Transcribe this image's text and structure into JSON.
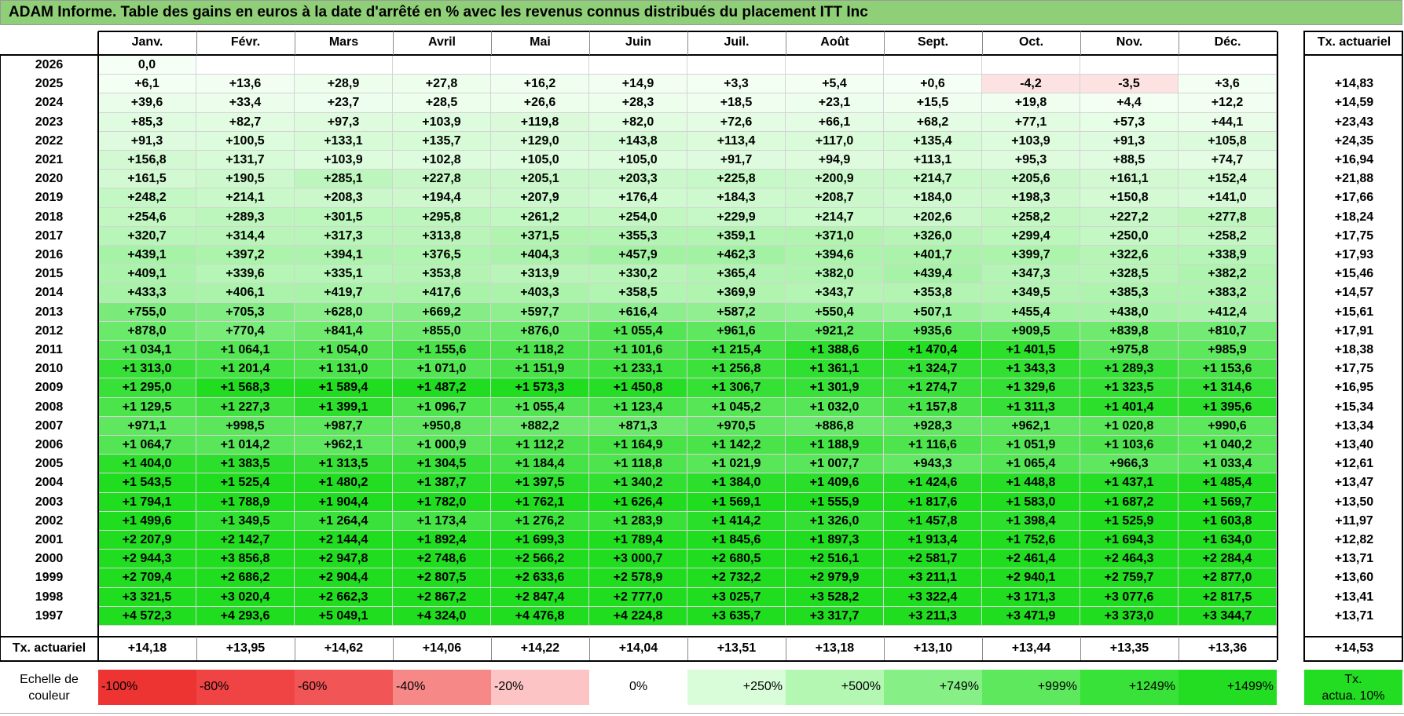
{
  "title": "ADAM Informe. Table des gains en euros à la date d'arrêté en % avec les revenus connus distribués du placement ITT Inc",
  "months": [
    "Janv.",
    "Févr.",
    "Mars",
    "Avril",
    "Mai",
    "Juin",
    "Juil.",
    "Août",
    "Sept.",
    "Oct.",
    "Nov.",
    "Déc."
  ],
  "rate_header": "Tx. actuariel",
  "rows": [
    {
      "year": "2026",
      "values": [
        "0,0",
        "",
        "",
        "",
        "",
        "",
        "",
        "",
        "",
        "",
        "",
        ""
      ],
      "rate": ""
    },
    {
      "year": "2025",
      "values": [
        "+6,1",
        "+13,6",
        "+28,9",
        "+27,8",
        "+16,2",
        "+14,9",
        "+3,3",
        "+5,4",
        "+0,6",
        "-4,2",
        "-3,5",
        "+3,6"
      ],
      "rate": "+14,83"
    },
    {
      "year": "2024",
      "values": [
        "+39,6",
        "+33,4",
        "+23,7",
        "+28,5",
        "+26,6",
        "+28,3",
        "+18,5",
        "+23,1",
        "+15,5",
        "+19,8",
        "+4,4",
        "+12,2"
      ],
      "rate": "+14,59"
    },
    {
      "year": "2023",
      "values": [
        "+85,3",
        "+82,7",
        "+97,3",
        "+103,9",
        "+119,8",
        "+82,0",
        "+72,6",
        "+66,1",
        "+68,2",
        "+77,1",
        "+57,3",
        "+44,1"
      ],
      "rate": "+23,43"
    },
    {
      "year": "2022",
      "values": [
        "+91,3",
        "+100,5",
        "+133,1",
        "+135,7",
        "+129,0",
        "+143,8",
        "+113,4",
        "+117,0",
        "+135,4",
        "+103,9",
        "+91,3",
        "+105,8"
      ],
      "rate": "+24,35"
    },
    {
      "year": "2021",
      "values": [
        "+156,8",
        "+131,7",
        "+103,9",
        "+102,8",
        "+105,0",
        "+105,0",
        "+91,7",
        "+94,9",
        "+113,1",
        "+95,3",
        "+88,5",
        "+74,7"
      ],
      "rate": "+16,94"
    },
    {
      "year": "2020",
      "values": [
        "+161,5",
        "+190,5",
        "+285,1",
        "+227,8",
        "+205,1",
        "+203,3",
        "+225,8",
        "+200,9",
        "+214,7",
        "+205,6",
        "+161,1",
        "+152,4"
      ],
      "rate": "+21,88"
    },
    {
      "year": "2019",
      "values": [
        "+248,2",
        "+214,1",
        "+208,3",
        "+194,4",
        "+207,9",
        "+176,4",
        "+184,3",
        "+208,7",
        "+184,0",
        "+198,3",
        "+150,8",
        "+141,0"
      ],
      "rate": "+17,66"
    },
    {
      "year": "2018",
      "values": [
        "+254,6",
        "+289,3",
        "+301,5",
        "+295,8",
        "+261,2",
        "+254,0",
        "+229,9",
        "+214,7",
        "+202,6",
        "+258,2",
        "+227,2",
        "+277,8"
      ],
      "rate": "+18,24"
    },
    {
      "year": "2017",
      "values": [
        "+320,7",
        "+314,4",
        "+317,3",
        "+313,8",
        "+371,5",
        "+355,3",
        "+359,1",
        "+371,0",
        "+326,0",
        "+299,4",
        "+250,0",
        "+258,2"
      ],
      "rate": "+17,75"
    },
    {
      "year": "2016",
      "values": [
        "+439,1",
        "+397,2",
        "+394,1",
        "+376,5",
        "+404,3",
        "+457,9",
        "+462,3",
        "+394,6",
        "+401,7",
        "+399,7",
        "+322,6",
        "+338,9"
      ],
      "rate": "+17,93"
    },
    {
      "year": "2015",
      "values": [
        "+409,1",
        "+339,6",
        "+335,1",
        "+353,8",
        "+313,9",
        "+330,2",
        "+365,4",
        "+382,0",
        "+439,4",
        "+347,3",
        "+328,5",
        "+382,2"
      ],
      "rate": "+15,46"
    },
    {
      "year": "2014",
      "values": [
        "+433,3",
        "+406,1",
        "+419,7",
        "+417,6",
        "+403,3",
        "+358,5",
        "+369,9",
        "+343,7",
        "+353,8",
        "+349,5",
        "+385,3",
        "+383,2"
      ],
      "rate": "+14,57"
    },
    {
      "year": "2013",
      "values": [
        "+755,0",
        "+705,3",
        "+628,0",
        "+669,2",
        "+597,7",
        "+616,4",
        "+587,2",
        "+550,4",
        "+507,1",
        "+455,4",
        "+438,0",
        "+412,4"
      ],
      "rate": "+15,61"
    },
    {
      "year": "2012",
      "values": [
        "+878,0",
        "+770,4",
        "+841,4",
        "+855,0",
        "+876,0",
        "+1 055,4",
        "+961,6",
        "+921,2",
        "+935,6",
        "+909,5",
        "+839,8",
        "+810,7"
      ],
      "rate": "+17,91"
    },
    {
      "year": "2011",
      "values": [
        "+1 034,1",
        "+1 064,1",
        "+1 054,0",
        "+1 155,6",
        "+1 118,2",
        "+1 101,6",
        "+1 215,4",
        "+1 388,6",
        "+1 470,4",
        "+1 401,5",
        "+975,8",
        "+985,9"
      ],
      "rate": "+18,38"
    },
    {
      "year": "2010",
      "values": [
        "+1 313,0",
        "+1 201,4",
        "+1 131,0",
        "+1 071,0",
        "+1 151,9",
        "+1 233,1",
        "+1 256,8",
        "+1 361,1",
        "+1 324,7",
        "+1 343,3",
        "+1 289,3",
        "+1 153,6"
      ],
      "rate": "+17,75"
    },
    {
      "year": "2009",
      "values": [
        "+1 295,0",
        "+1 568,3",
        "+1 589,4",
        "+1 487,2",
        "+1 573,3",
        "+1 450,8",
        "+1 306,7",
        "+1 301,9",
        "+1 274,7",
        "+1 329,6",
        "+1 323,5",
        "+1 314,6"
      ],
      "rate": "+16,95"
    },
    {
      "year": "2008",
      "values": [
        "+1 129,5",
        "+1 227,3",
        "+1 399,1",
        "+1 096,7",
        "+1 055,4",
        "+1 123,4",
        "+1 045,2",
        "+1 032,0",
        "+1 157,8",
        "+1 311,3",
        "+1 401,4",
        "+1 395,6"
      ],
      "rate": "+15,34"
    },
    {
      "year": "2007",
      "values": [
        "+971,1",
        "+998,5",
        "+987,7",
        "+950,8",
        "+882,2",
        "+871,3",
        "+970,5",
        "+886,8",
        "+928,3",
        "+962,1",
        "+1 020,8",
        "+990,6"
      ],
      "rate": "+13,34"
    },
    {
      "year": "2006",
      "values": [
        "+1 064,7",
        "+1 014,2",
        "+962,1",
        "+1 000,9",
        "+1 112,2",
        "+1 164,9",
        "+1 142,2",
        "+1 188,9",
        "+1 116,6",
        "+1 051,9",
        "+1 103,6",
        "+1 040,2"
      ],
      "rate": "+13,40"
    },
    {
      "year": "2005",
      "values": [
        "+1 404,0",
        "+1 383,5",
        "+1 313,5",
        "+1 304,5",
        "+1 184,4",
        "+1 118,8",
        "+1 021,9",
        "+1 007,7",
        "+943,3",
        "+1 065,4",
        "+966,3",
        "+1 033,4"
      ],
      "rate": "+12,61"
    },
    {
      "year": "2004",
      "values": [
        "+1 543,5",
        "+1 525,4",
        "+1 480,2",
        "+1 387,7",
        "+1 397,5",
        "+1 340,2",
        "+1 384,0",
        "+1 409,6",
        "+1 424,6",
        "+1 448,8",
        "+1 437,1",
        "+1 485,4"
      ],
      "rate": "+13,47"
    },
    {
      "year": "2003",
      "values": [
        "+1 794,1",
        "+1 788,9",
        "+1 904,4",
        "+1 782,0",
        "+1 762,1",
        "+1 626,4",
        "+1 569,1",
        "+1 555,9",
        "+1 817,6",
        "+1 583,0",
        "+1 687,2",
        "+1 569,7"
      ],
      "rate": "+13,50"
    },
    {
      "year": "2002",
      "values": [
        "+1 499,6",
        "+1 349,5",
        "+1 264,4",
        "+1 173,4",
        "+1 276,2",
        "+1 283,9",
        "+1 414,2",
        "+1 326,0",
        "+1 457,8",
        "+1 398,4",
        "+1 525,9",
        "+1 603,8"
      ],
      "rate": "+11,97"
    },
    {
      "year": "2001",
      "values": [
        "+2 207,9",
        "+2 142,7",
        "+2 144,4",
        "+1 892,4",
        "+1 699,3",
        "+1 789,4",
        "+1 845,6",
        "+1 897,3",
        "+1 913,4",
        "+1 752,6",
        "+1 694,3",
        "+1 634,0"
      ],
      "rate": "+12,82"
    },
    {
      "year": "2000",
      "values": [
        "+2 944,3",
        "+3 856,8",
        "+2 947,8",
        "+2 748,6",
        "+2 566,2",
        "+3 000,7",
        "+2 680,5",
        "+2 516,1",
        "+2 581,7",
        "+2 461,4",
        "+2 464,3",
        "+2 284,4"
      ],
      "rate": "+13,71"
    },
    {
      "year": "1999",
      "values": [
        "+2 709,4",
        "+2 686,2",
        "+2 904,4",
        "+2 807,5",
        "+2 633,6",
        "+2 578,9",
        "+2 732,2",
        "+2 979,9",
        "+3 211,1",
        "+2 940,1",
        "+2 759,7",
        "+2 877,0"
      ],
      "rate": "+13,60"
    },
    {
      "year": "1998",
      "values": [
        "+3 321,5",
        "+3 020,4",
        "+2 662,3",
        "+2 867,2",
        "+2 847,4",
        "+2 777,0",
        "+3 025,7",
        "+3 528,2",
        "+3 322,4",
        "+3 171,3",
        "+3 077,6",
        "+2 817,5"
      ],
      "rate": "+13,41"
    },
    {
      "year": "1997",
      "values": [
        "+4 572,3",
        "+4 293,6",
        "+5 049,1",
        "+4 324,0",
        "+4 476,8",
        "+4 224,8",
        "+3 635,7",
        "+3 317,7",
        "+3 211,3",
        "+3 471,9",
        "+3 373,0",
        "+3 344,7"
      ],
      "rate": "+13,71"
    }
  ],
  "footer": {
    "label": "Tx. actuariel",
    "values": [
      "+14,18",
      "+13,95",
      "+14,62",
      "+14,06",
      "+14,22",
      "+14,04",
      "+13,51",
      "+13,18",
      "+13,10",
      "+13,44",
      "+13,35",
      "+13,36"
    ],
    "total": "+14,53"
  },
  "legend": {
    "label_line1": "Echelle de",
    "label_line2": "couleur",
    "items": [
      {
        "text": "-100%",
        "color": "#ee3333",
        "align": "left"
      },
      {
        "text": "-80%",
        "color": "#f04444",
        "align": "left"
      },
      {
        "text": "-60%",
        "color": "#f25555",
        "align": "left"
      },
      {
        "text": "-40%",
        "color": "#f78888",
        "align": "left"
      },
      {
        "text": "-20%",
        "color": "#fcc4c4",
        "align": "left"
      },
      {
        "text": "0%",
        "color": "#ffffff",
        "align": "center"
      },
      {
        "text": "+250%",
        "color": "#d9fcd9",
        "align": "right"
      },
      {
        "text": "+500%",
        "color": "#b3f7b3",
        "align": "right"
      },
      {
        "text": "+749%",
        "color": "#86f086",
        "align": "right"
      },
      {
        "text": "+999%",
        "color": "#5ee85e",
        "align": "right"
      },
      {
        "text": "+1249%",
        "color": "#38e238",
        "align": "right"
      },
      {
        "text": "+1499%",
        "color": "#22dd22",
        "align": "right"
      }
    ],
    "rate_line1": "Tx.",
    "rate_line2": "actua. 10%",
    "rate_color": "#22dd22"
  },
  "colors": {
    "title_bg": "#8fcf78",
    "negative_bg": "#fde2e2",
    "scale_low": "#ffffff",
    "scale_high": "#20dd20"
  }
}
